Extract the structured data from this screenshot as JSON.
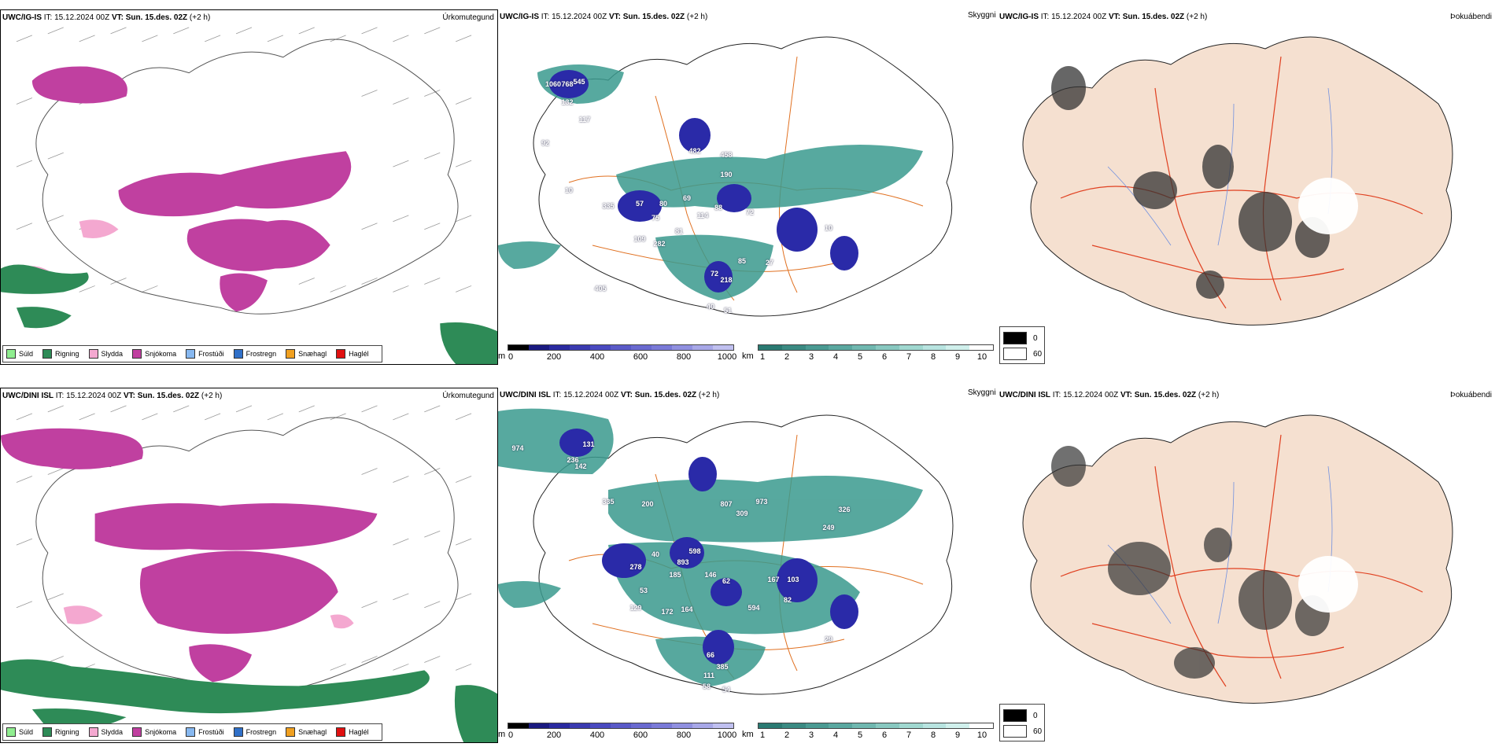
{
  "rows": [
    {
      "model": "UWC/IG-IS",
      "it_label": "IT:",
      "it_value": "15.12.2024 00Z",
      "vt_label": "VT:",
      "vt_value": "Sun. 15.des. 02Z",
      "offset": "(+2 h)",
      "visibility_values": [
        "1060",
        "768",
        "545",
        "132",
        "117",
        "92",
        "482",
        "458",
        "190",
        "335",
        "57",
        "80",
        "69",
        "88",
        "72",
        "75",
        "114",
        "81",
        "109",
        "282",
        "10",
        "85",
        "27",
        "405",
        "72",
        "218",
        "40",
        "51",
        "10"
      ]
    },
    {
      "model": "UWC/DINI ISL",
      "it_label": "IT:",
      "it_value": "15.12.2024 00Z",
      "vt_label": "VT:",
      "vt_value": "Sun. 15.des. 02Z",
      "offset": "(+2 h)",
      "visibility_values": [
        "974",
        "131",
        "236",
        "142",
        "335",
        "200",
        "807",
        "973",
        "309",
        "326",
        "249",
        "598",
        "893",
        "40",
        "278",
        "185",
        "146",
        "62",
        "167",
        "103",
        "53",
        "129",
        "594",
        "82",
        "172",
        "164",
        "29",
        "66",
        "385",
        "111",
        "58",
        "54"
      ]
    }
  ],
  "panel_titles": {
    "precip": "Úrkomutegund",
    "visibility": "Skyggni",
    "clouds": "Þokuábendi"
  },
  "precip_legend": [
    {
      "label": "Súld",
      "color": "#90ee90"
    },
    {
      "label": "Rigning",
      "color": "#2e8b57"
    },
    {
      "label": "Slydda",
      "color": "#f4a8d0"
    },
    {
      "label": "Snjókoma",
      "color": "#c040a0"
    },
    {
      "label": "Frostúði",
      "color": "#87b8f0"
    },
    {
      "label": "Frostregn",
      "color": "#3070c8"
    },
    {
      "label": "Snæhagl",
      "color": "#f0a020"
    },
    {
      "label": "Haglél",
      "color": "#e01010"
    }
  ],
  "cbar_m": {
    "unit": "m",
    "ticks": [
      "0",
      "200",
      "400",
      "600",
      "800",
      "1000"
    ]
  },
  "cbar_km": {
    "unit": "km",
    "ticks": [
      "1",
      "2",
      "3",
      "4",
      "5",
      "6",
      "7",
      "8",
      "9",
      "10"
    ]
  },
  "clouds_legend": {
    "black": "0",
    "white": "60"
  },
  "colors": {
    "snow": "#c040a0",
    "rain": "#2e8b57",
    "sleet": "#f4a8d0",
    "vis_teal": "#3a9a8e",
    "vis_blue": "#2a2aa8",
    "road": "#e07020",
    "land": "#f5e0d0",
    "river": "#7090e0"
  }
}
